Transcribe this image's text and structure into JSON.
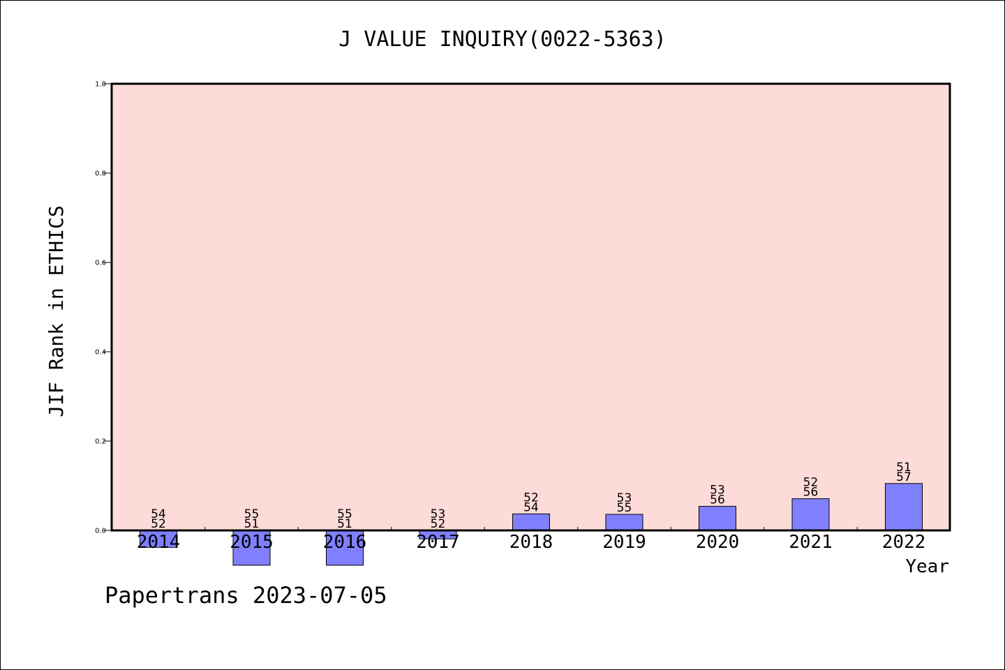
{
  "chart_data": {
    "type": "bar",
    "title": "J VALUE INQUIRY(0022-5363)",
    "xlabel": "Year",
    "ylabel": "JIF Rank in ETHICS",
    "ylim": [
      0.0,
      1.0
    ],
    "yticks": [
      "0.0",
      "0.2",
      "0.4",
      "0.6",
      "0.8",
      "1.0"
    ],
    "grid": false,
    "categories": [
      "2014",
      "2015",
      "2016",
      "2017",
      "2018",
      "2019",
      "2020",
      "2021",
      "2022"
    ],
    "values": [
      -0.038,
      -0.078,
      -0.078,
      -0.019,
      0.037,
      0.036,
      0.054,
      0.071,
      0.105
    ],
    "labels_top": [
      "54",
      "55",
      "55",
      "53",
      "52",
      "53",
      "53",
      "52",
      "51"
    ],
    "labels_bottom": [
      "52",
      "51",
      "51",
      "52",
      "54",
      "55",
      "56",
      "56",
      "57"
    ],
    "plot_background": "#fddbd8",
    "bar_color": "#8080ff"
  },
  "footer": {
    "text": "Papertrans 2023-07-05"
  }
}
